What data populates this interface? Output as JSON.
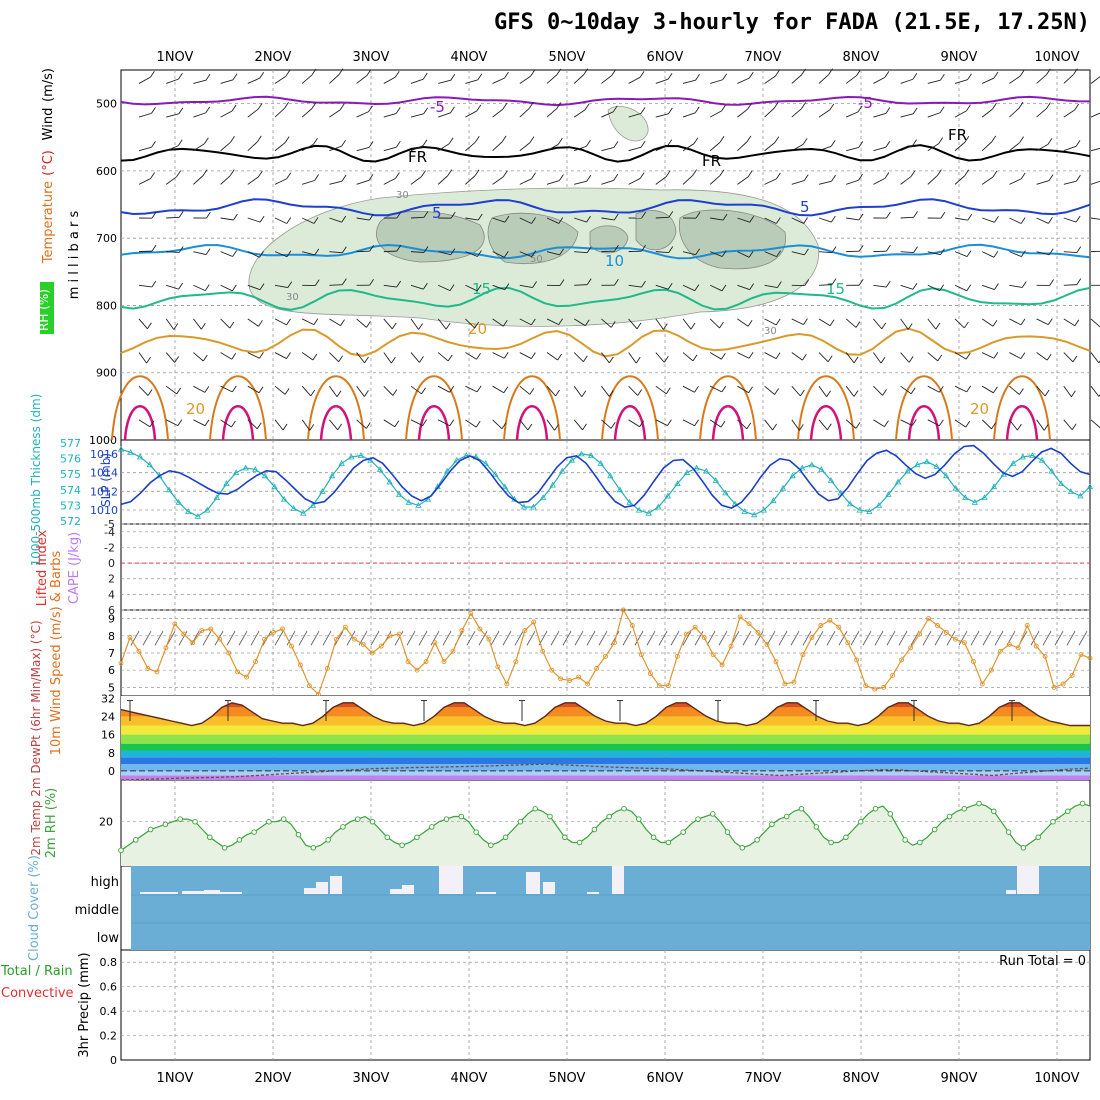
{
  "page": {
    "title": "GFS 0~10day 3-hourly for FADA (21.5E, 17.25N)"
  },
  "colors": {
    "wind_barb": "#222222",
    "temp_m5": "#8a1ab8",
    "temp_fr": "#000000",
    "temp_m5_low": "#1f3fcf",
    "temp_10": "#1b8ed8",
    "temp_15": "#1fb98a",
    "temp_20": "#d89a2a",
    "temp_25": "#d77a1c",
    "temp_30": "#d2127a",
    "rh_fill": "#dcebd8",
    "thickness": "#21b2b8",
    "slp": "#1b3fc8",
    "wind_speed": "#e0952f",
    "rh2m": "#3aa33a",
    "cloud": "#6aaed6",
    "dewpt": "#7a4a3a"
  },
  "chart_data": [
    {
      "id": "upper_air",
      "type": "line",
      "x_ticks": [
        "1NOV",
        "2NOV",
        "3NOV",
        "4NOV",
        "5NOV",
        "6NOV",
        "7NOV",
        "8NOV",
        "9NOV",
        "10NOV"
      ],
      "ylabel": "m i l l i b a r s",
      "y_ticks": [
        "500",
        "600",
        "700",
        "800",
        "900",
        "1000"
      ],
      "ylim": [
        1000,
        450
      ],
      "grid": true,
      "legend_labels": [
        "RH (%)",
        "Temperature",
        "(°C)",
        "Wind",
        "(m/s)"
      ],
      "contour_labels": [
        "-5",
        "-5",
        "FR",
        "FR",
        "FR",
        "5",
        "5",
        "10",
        "15",
        "15",
        "20",
        "20",
        "20",
        "30",
        "30",
        "30",
        "50"
      ],
      "series": [
        {
          "name": "-5",
          "pressure_mean": 500,
          "color_key": "temp_m5"
        },
        {
          "name": "FR",
          "pressure_mean": 575,
          "color_key": "temp_fr"
        },
        {
          "name": "5",
          "pressure_mean": 655,
          "color_key": "temp_m5_low"
        },
        {
          "name": "10",
          "pressure_mean": 720,
          "color_key": "temp_10"
        },
        {
          "name": "15",
          "pressure_mean": 792,
          "color_key": "temp_15"
        },
        {
          "name": "20",
          "pressure_mean": 860,
          "color_key": "temp_20"
        }
      ]
    },
    {
      "id": "thickness_slp",
      "type": "line",
      "ylabel_left": "1000-500mb Thickness (dm)",
      "ylabel_right": "SLP (mb)",
      "y_ticks_left": [
        "577",
        "576",
        "575",
        "574",
        "573",
        "572"
      ],
      "y_ticks_right": [
        "1016",
        "1014",
        "1012",
        "1010"
      ],
      "ylim_left": [
        572,
        577
      ],
      "ylim_right": [
        1008.5,
        1017.5
      ],
      "series": [
        {
          "name": "Thickness",
          "values": [
            576.6,
            576.4,
            576.1,
            575.6,
            574.9,
            574.0,
            573.2,
            572.6,
            572.3,
            572.7,
            573.5,
            574.4,
            575.1,
            575.4,
            575.3,
            574.9,
            574.2,
            573.4,
            572.8,
            572.5,
            573.0,
            573.9,
            574.9,
            575.7,
            576.1,
            576.2,
            575.9,
            575.3,
            574.5,
            573.7,
            573.2,
            573.0,
            573.4,
            574.2,
            575.2,
            575.9,
            576.2,
            576.1,
            575.7,
            575.0,
            574.2,
            573.4,
            572.9,
            572.9,
            573.5,
            574.3,
            575.2,
            575.9,
            576.3,
            576.2,
            575.7,
            574.9,
            574.0,
            573.2,
            572.7,
            572.5,
            572.9,
            573.6,
            574.4,
            575.1,
            575.4,
            575.2,
            574.6,
            573.8,
            573.1,
            572.6,
            572.4,
            572.7,
            573.3,
            574.1,
            574.9,
            575.4,
            575.6,
            575.3,
            574.6,
            573.8,
            573.1,
            572.7,
            572.6,
            573.0,
            573.7,
            574.5,
            575.2,
            575.6,
            575.8,
            575.5,
            574.9,
            574.1,
            573.5,
            573.2,
            573.5,
            574.2,
            575.0,
            575.7,
            576.1,
            576.2,
            575.9,
            575.2,
            574.4,
            573.9,
            573.6,
            574.2
          ]
        },
        {
          "name": "SLP",
          "values": [
            1010.6,
            1010.9,
            1011.8,
            1012.9,
            1013.7,
            1014.2,
            1014.0,
            1013.5,
            1012.9,
            1012.3,
            1011.8,
            1011.7,
            1012.2,
            1013.0,
            1013.7,
            1014.2,
            1014.1,
            1013.2,
            1012.2,
            1011.2,
            1010.7,
            1010.9,
            1011.9,
            1013.2,
            1014.5,
            1015.3,
            1015.6,
            1015.0,
            1013.8,
            1012.5,
            1011.5,
            1011.0,
            1011.5,
            1012.8,
            1014.2,
            1015.3,
            1015.8,
            1015.3,
            1014.1,
            1012.7,
            1011.5,
            1010.8,
            1010.9,
            1011.8,
            1013.2,
            1014.6,
            1015.6,
            1015.8,
            1015.0,
            1013.6,
            1012.1,
            1010.9,
            1010.3,
            1010.5,
            1011.6,
            1013.1,
            1014.5,
            1015.3,
            1015.4,
            1014.5,
            1013.1,
            1011.6,
            1010.5,
            1010.2,
            1010.8,
            1012.0,
            1013.5,
            1014.8,
            1015.5,
            1015.3,
            1014.4,
            1013.0,
            1011.7,
            1011.0,
            1011.2,
            1012.4,
            1013.9,
            1015.3,
            1016.1,
            1016.4,
            1015.8,
            1014.8,
            1013.9,
            1013.4,
            1013.8,
            1014.8,
            1016.0,
            1016.8,
            1016.9,
            1016.1,
            1015.0,
            1014.0,
            1013.6,
            1014.1,
            1015.2,
            1016.2,
            1016.6,
            1016.1,
            1015.0,
            1014.1,
            1013.8
          ]
        }
      ]
    },
    {
      "id": "stability",
      "type": "line",
      "ylabel_left": "Lifted Index",
      "ylabel_right": "CAPE (J/kg)",
      "y_ticks": [
        "-5",
        "-4",
        "-2",
        "0",
        "2",
        "4",
        "6"
      ],
      "ylim": [
        6,
        -5
      ],
      "reference_line": 0
    },
    {
      "id": "wind10m",
      "type": "line",
      "ylabel": "10m Wind Speed (m/s) & Barbs",
      "y_ticks": [
        "9",
        "8",
        "7",
        "6",
        "5"
      ],
      "ylim": [
        4.5,
        9.5
      ],
      "series": [
        {
          "name": "Speed",
          "values": [
            6.4,
            7.9,
            7.1,
            6.1,
            5.9,
            7.3,
            8.7,
            8.1,
            7.6,
            8.3,
            8.4,
            7.8,
            7.0,
            5.9,
            5.6,
            6.5,
            7.8,
            8.2,
            8.4,
            7.4,
            6.3,
            5.1,
            4.6,
            6.1,
            7.8,
            8.5,
            7.8,
            7.5,
            7.0,
            7.4,
            8.0,
            8.1,
            6.5,
            6.0,
            6.5,
            7.6,
            6.5,
            7.1,
            8.3,
            9.3,
            8.4,
            7.8,
            6.2,
            5.2,
            6.5,
            8.3,
            8.8,
            7.1,
            6.0,
            5.5,
            5.4,
            5.6,
            5.2,
            6.1,
            6.8,
            7.6,
            9.5,
            8.6,
            6.9,
            5.8,
            5.1,
            5.1,
            6.8,
            8.1,
            8.5,
            7.9,
            6.9,
            6.3,
            7.4,
            9.1,
            8.7,
            8.2,
            7.5,
            6.5,
            5.2,
            5.3,
            6.9,
            7.9,
            8.6,
            8.9,
            8.5,
            7.6,
            6.6,
            5.1,
            4.9,
            5.0,
            5.7,
            6.6,
            7.3,
            8.1,
            9.0,
            8.6,
            8.2,
            7.8,
            7.6,
            6.5,
            5.2,
            6.0,
            7.1,
            7.5,
            7.3,
            8.6,
            7.4,
            6.8,
            5.0,
            5.2,
            5.7,
            6.9,
            6.7
          ]
        }
      ]
    },
    {
      "id": "temp2m",
      "type": "area",
      "ylabel": "2m Temp 2m DewPt (6hr Min/Max) (°C)",
      "y_ticks": [
        "32",
        "24",
        "16",
        "8",
        "0"
      ],
      "ylim": [
        -4,
        33
      ],
      "series": [
        {
          "name": "2m Temp",
          "values": [
            27,
            26,
            25,
            24,
            23,
            22,
            21,
            20,
            21,
            24,
            28,
            30,
            29,
            26,
            23,
            22,
            21,
            21,
            20,
            21,
            24,
            28,
            30,
            30,
            27,
            24,
            22,
            21,
            21,
            20,
            21,
            24,
            28,
            30,
            30,
            27,
            24,
            22,
            21,
            21,
            20,
            21,
            24,
            28,
            30,
            30,
            27,
            24,
            22,
            21,
            21,
            20,
            21,
            24,
            28,
            30,
            30,
            27,
            24,
            22,
            21,
            21,
            20,
            21,
            24,
            28,
            30,
            30,
            27,
            24,
            22,
            21,
            21,
            20,
            21,
            24,
            28,
            30,
            30,
            27,
            24,
            22,
            21,
            21,
            20,
            21,
            24,
            28,
            30,
            30,
            27,
            24,
            22,
            21,
            20,
            20,
            20
          ]
        },
        {
          "name": "2m DewPt",
          "values": [
            -4,
            -3.8,
            -3.5,
            -3.2,
            -3,
            -2.8,
            -2.5,
            -2,
            -1.5,
            -1,
            -0.5,
            0,
            0.5,
            1,
            1.2,
            1.5,
            1.6,
            1.8,
            2,
            2.2,
            2.5,
            2.8,
            3,
            2.6,
            2.2,
            1.8,
            1.5,
            1.2,
            1,
            0.5,
            0,
            -0.5,
            -1,
            -1.5,
            -2,
            -1.5,
            -1,
            -0.5,
            0,
            0.5,
            0.5,
            0,
            -0.5,
            -1,
            -1.5,
            -2,
            -1.2,
            -0.5,
            0.2,
            0.8,
            1.2
          ]
        }
      ],
      "band_colors": [
        "#c080f0",
        "#a8d0f8",
        "#6fb7f0",
        "#2b77e6",
        "#1fb5d6",
        "#17c64c",
        "#8ee24a",
        "#f1ea3a",
        "#f9bf2a",
        "#f58a1e",
        "#d9531a"
      ]
    },
    {
      "id": "rh2m",
      "type": "area",
      "ylabel": "2m RH (%)",
      "y_ticks": [
        "20"
      ],
      "ylim": [
        3,
        36
      ],
      "series": [
        {
          "name": "2m RH",
          "values": [
            9,
            11,
            13,
            15,
            17,
            18,
            19,
            20,
            21,
            21,
            20,
            17,
            14,
            12,
            10,
            11,
            13,
            15,
            16,
            18,
            20,
            20,
            21,
            19,
            15,
            11,
            10,
            11,
            13,
            16,
            18,
            20,
            21,
            22,
            20,
            17,
            14,
            12,
            11,
            12,
            14,
            16,
            18,
            20,
            21,
            22,
            22,
            20,
            16,
            13,
            11,
            12,
            14,
            17,
            20,
            23,
            25,
            24,
            22,
            18,
            14,
            12,
            12,
            14,
            17,
            20,
            22,
            24,
            25,
            24,
            21,
            17,
            14,
            12,
            12,
            14,
            16,
            19,
            21,
            22,
            23,
            20,
            16,
            12,
            10,
            11,
            13,
            16,
            19,
            21,
            22,
            24,
            25,
            22,
            18,
            14,
            12,
            12,
            14,
            17,
            20,
            23,
            25,
            26,
            23,
            18,
            13,
            11,
            12,
            14,
            17,
            20,
            22,
            24,
            25,
            26,
            27,
            26,
            24,
            20,
            16,
            12,
            10,
            12,
            14,
            17,
            20,
            22,
            24,
            26,
            27,
            26
          ]
        }
      ]
    },
    {
      "id": "cloud",
      "type": "bar",
      "ylabel": "Cloud Cover (%)",
      "y_ticks": [
        "high",
        "middle",
        "low"
      ]
    },
    {
      "id": "precip",
      "type": "bar",
      "ylabel_left": "Total / Rain",
      "ylabel_left2": "Convective",
      "ylabel": "3hr Precip (mm)",
      "y_ticks": [
        "0.8",
        "0.6",
        "0.4",
        "0.2",
        "0"
      ],
      "ylim": [
        0,
        0.9
      ],
      "annotation": "Run Total = 0"
    }
  ]
}
